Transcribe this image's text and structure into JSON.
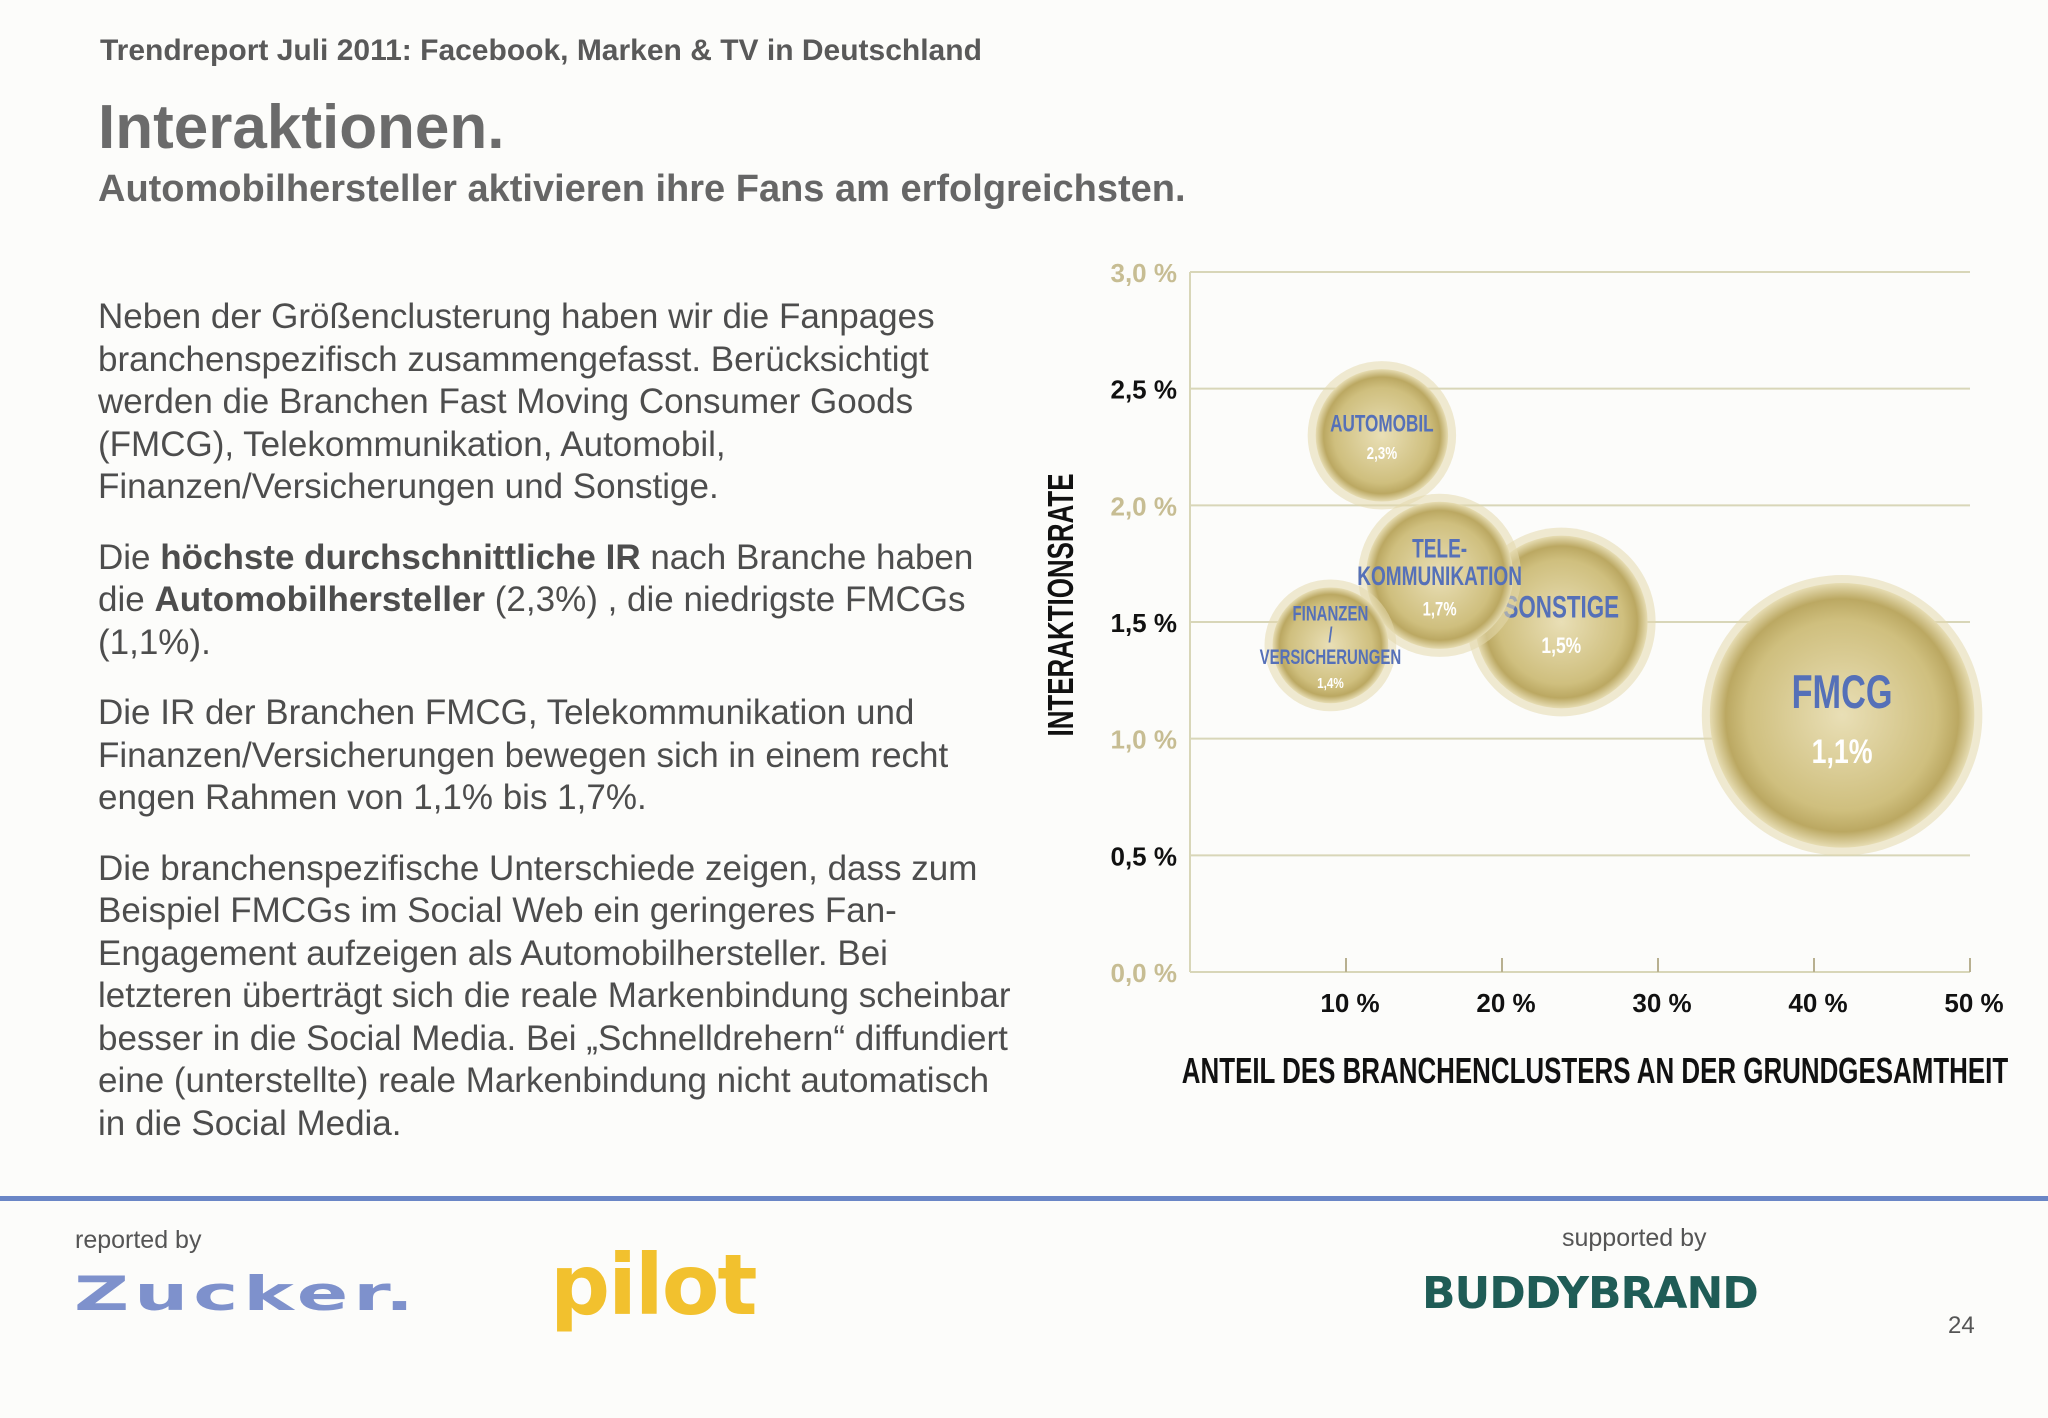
{
  "header": {
    "report_title": "Trendreport Juli 2011: Facebook, Marken & TV in Deutschland",
    "title": "Interaktionen.",
    "subtitle": "Automobilhersteller aktivieren ihre Fans am erfolgreichsten."
  },
  "body": {
    "p1": "Neben der Größenclusterung haben wir die Fanpages branchenspezifisch zusammengefasst. Berücksichtigt werden die Branchen Fast Moving Consumer Goods (FMCG), Telekommunikation, Automobil, Finanzen/Versicherungen und Sonstige.",
    "p2_a": "Die ",
    "p2_b": "höchste durchschnittliche IR",
    "p2_c": " nach Branche haben die ",
    "p2_d": "Automobilhersteller",
    "p2_e": " (2,3%) , die niedrigste FMCGs (1,1%).",
    "p3": "Die IR der Branchen FMCG, Telekommunikation und Finanzen/Versicherungen bewegen sich in einem recht engen Rahmen von 1,1% bis 1,7%.",
    "p4": "Die branchenspezifische Unterschiede zeigen, dass zum Beispiel FMCGs im Social Web ein geringeres Fan-Engagement aufzeigen als Automobilhersteller. Bei letzteren überträgt sich die reale Markenbindung scheinbar besser in die Social Media. Bei „Schnelldrehern“ diffundiert eine (unterstellte) reale Markenbindung nicht automatisch in die Social Media."
  },
  "chart_data": {
    "type": "scatter",
    "ylabel": "INTERAKTIONSRATE",
    "xlabel": "ANTEIL DES BRANCHENCLUSTERS AN DER GRUNDGESAMTHEIT",
    "xlim": [
      0,
      50
    ],
    "ylim": [
      0,
      3.0
    ],
    "y_ticks": [
      "0,0 %",
      "0,5 %",
      "1,0 %",
      "1,5 %",
      "2,0 %",
      "2,5 %",
      "3,0 %"
    ],
    "x_ticks": [
      "10 %",
      "20 %",
      "30 %",
      "40 %",
      "50 %"
    ],
    "grid": true,
    "points": [
      {
        "label": "AUTOMOBIL",
        "value_label": "2,3%",
        "x": 12.3,
        "y": 2.3,
        "size": 8
      },
      {
        "label": "TELE- KOMMUNIKATION",
        "value_label": "1,7%",
        "x": 16,
        "y": 1.7,
        "size": 10
      },
      {
        "label": "FINANZEN / VERSICHERUNGEN",
        "value_label": "1,4%",
        "x": 9,
        "y": 1.4,
        "size": 6
      },
      {
        "label": "SONSTIGE",
        "value_label": "1,5%",
        "x": 23.8,
        "y": 1.5,
        "size": 14
      },
      {
        "label": "FMCG",
        "value_label": "1,1%",
        "x": 41.8,
        "y": 1.1,
        "size": 34
      }
    ],
    "colors": {
      "bubble": "#d4c58a",
      "bubble_edge": "#e3d9ad",
      "label": "#5570b8",
      "value": "#ffffff",
      "grid": "#d8d6b8"
    }
  },
  "footer": {
    "reported_by": "reported by",
    "supported_by": "supported by",
    "logo_zucker": "Zucker.",
    "logo_pilot": "pilot",
    "logo_buddybrand": "BUDDYBRAND",
    "page_number": "24"
  }
}
